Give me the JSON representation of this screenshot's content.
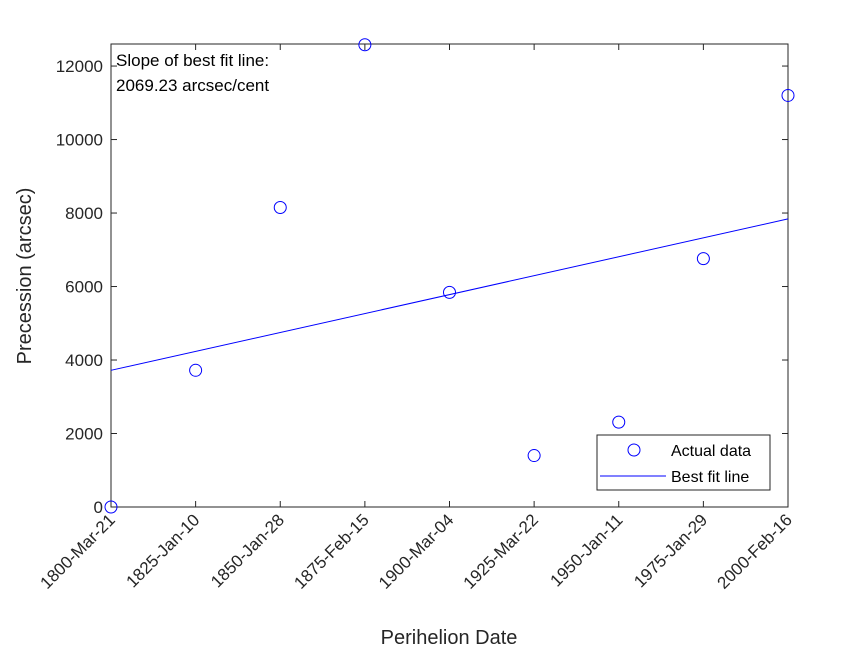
{
  "chart_data": {
    "type": "scatter",
    "title": "",
    "xlabel": "Perihelion Date",
    "ylabel": "Precession (arcsec)",
    "x_categories": [
      "1800-Mar-21",
      "1825-Jan-10",
      "1850-Jan-28",
      "1875-Feb-15",
      "1900-Mar-04",
      "1925-Mar-22",
      "1950-Jan-11",
      "1975-Jan-29",
      "2000-Feb-16"
    ],
    "yticks": [
      0,
      2000,
      4000,
      6000,
      8000,
      10000,
      12000
    ],
    "ylim": [
      0,
      12600
    ],
    "series": [
      {
        "name": "Actual data",
        "type": "scatter",
        "color": "#0000ff",
        "points": [
          {
            "x": 0,
            "y": 0
          },
          {
            "x": 1,
            "y": 3720
          },
          {
            "x": 2,
            "y": 8150
          },
          {
            "x": 3,
            "y": 12580
          },
          {
            "x": 4,
            "y": 5840
          },
          {
            "x": 5,
            "y": 1400
          },
          {
            "x": 6,
            "y": 2310
          },
          {
            "x": 7,
            "y": 6760
          },
          {
            "x": 8,
            "y": 11200
          }
        ]
      },
      {
        "name": "Best fit line",
        "type": "line",
        "color": "#0000ff",
        "points": [
          {
            "x": 0,
            "y": 3720
          },
          {
            "x": 8,
            "y": 7840
          }
        ]
      }
    ],
    "annotation": {
      "line1": "Slope of best fit line:",
      "line2": "2069.23 arcsec/cent"
    },
    "legend": {
      "position": "bottom-right",
      "entries": [
        "Actual data",
        "Best fit line"
      ]
    },
    "grid": false
  }
}
